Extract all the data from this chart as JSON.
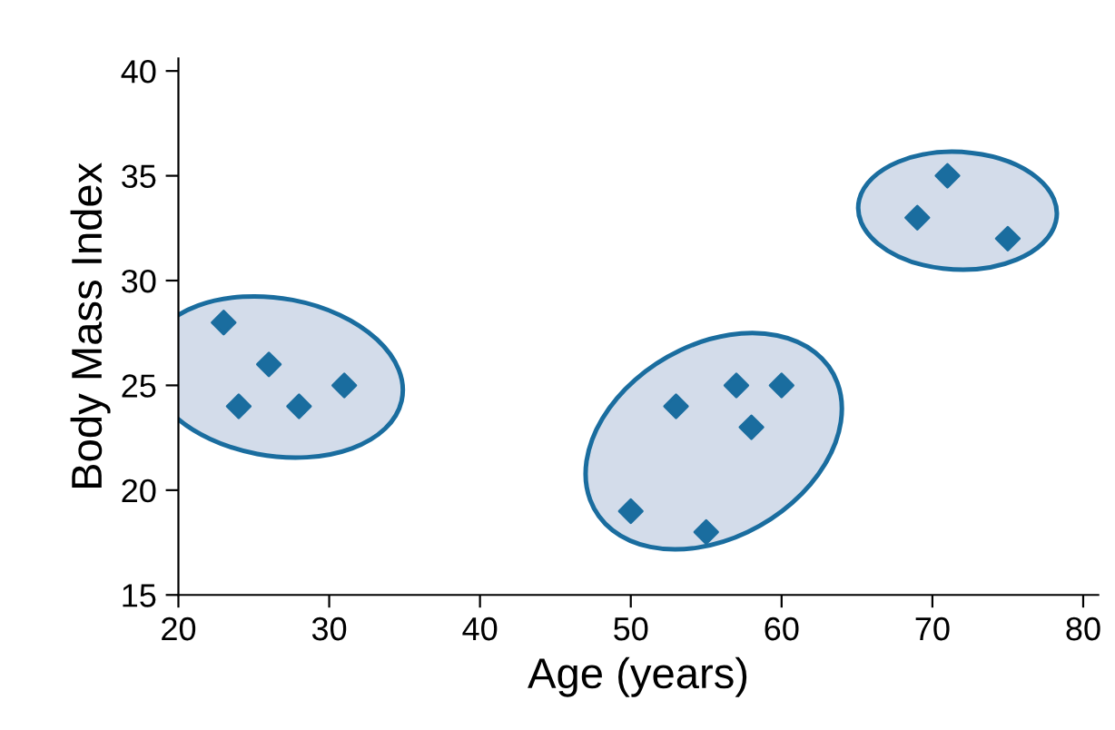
{
  "chart_data": {
    "type": "scatter",
    "xlabel": "Age (years)",
    "ylabel": "Body Mass Index",
    "series": [
      {
        "color": "#1a6d9f",
        "x": [
          23,
          24,
          26,
          28,
          31
        ],
        "values": [
          28,
          24,
          26,
          24,
          25
        ]
      },
      {
        "color": "#1a6d9f",
        "x": [
          50,
          53,
          55,
          57,
          58,
          60
        ],
        "values": [
          19,
          24,
          18,
          25,
          23,
          25
        ]
      },
      {
        "color": "#1a6d9f",
        "x": [
          69,
          71,
          75
        ],
        "values": [
          33,
          35,
          32
        ]
      }
    ],
    "xlim": [
      20,
      81
    ],
    "ylim": [
      15,
      40.6
    ],
    "xticks": [
      20,
      30,
      40,
      50,
      60,
      70,
      80
    ],
    "yticks": [
      15,
      20,
      25,
      30,
      35,
      40
    ],
    "marker": "diamond",
    "grid": false,
    "legend": false
  }
}
